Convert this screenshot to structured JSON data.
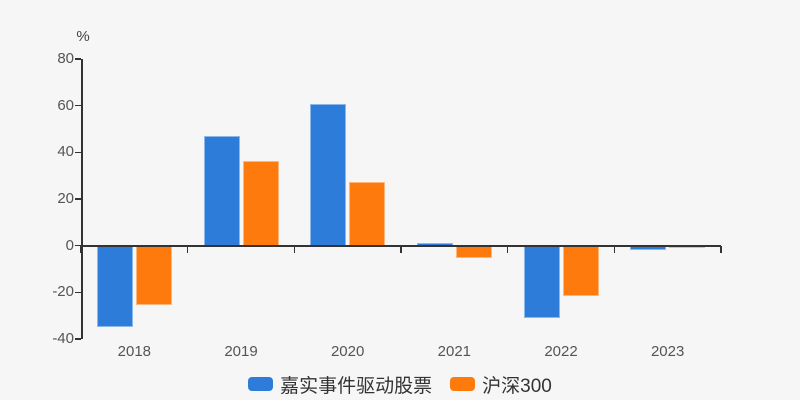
{
  "chart": {
    "unit_label": "%",
    "axis_color": "#333333",
    "label_color": "#555555",
    "background_color": "#f6f6f7"
  },
  "chart_data": {
    "type": "bar",
    "title": "",
    "ylabel": "%",
    "xlabel": "",
    "categories": [
      "2018",
      "2019",
      "2020",
      "2021",
      "2022",
      "2023"
    ],
    "series": [
      {
        "name": "嘉实事件驱动股票",
        "color": "#2d7cda",
        "values": [
          -34.7,
          47.1,
          60.9,
          1.2,
          -31.0,
          -1.8
        ]
      },
      {
        "name": "沪深300",
        "color": "#ff7a0d",
        "values": [
          -25.3,
          36.1,
          27.2,
          -5.2,
          -21.6,
          -1.0
        ]
      }
    ],
    "ylim": [
      -40,
      80
    ],
    "yticks": [
      80,
      60,
      40,
      20,
      0,
      -20,
      -40
    ],
    "grid": false,
    "legend_position": "bottom"
  }
}
